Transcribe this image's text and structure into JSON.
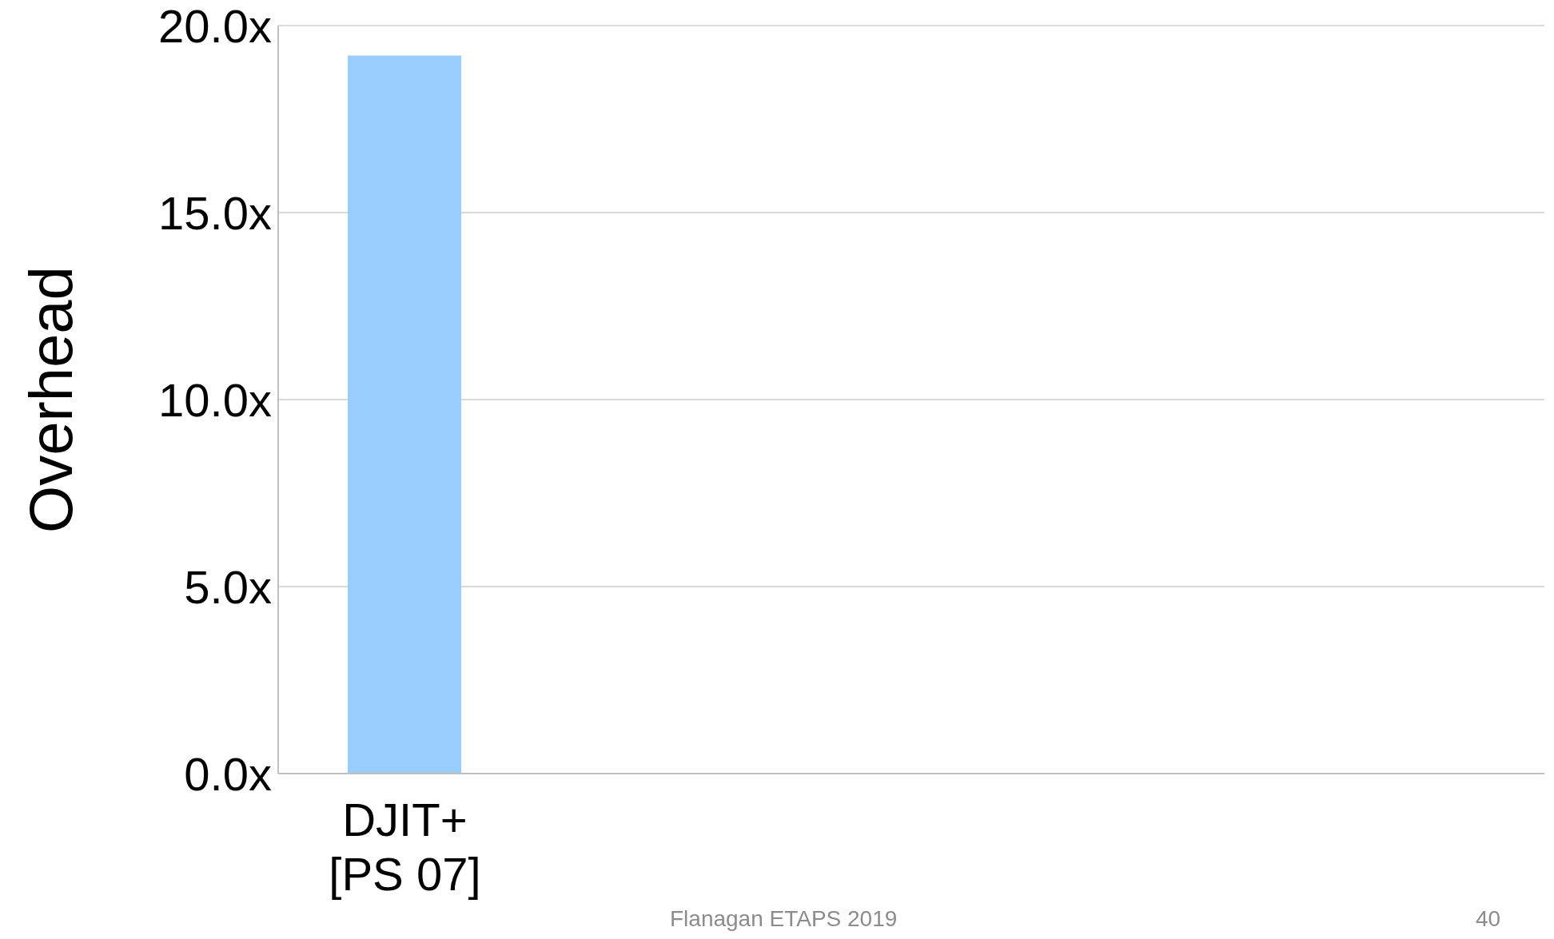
{
  "chart_data": {
    "type": "bar",
    "ylabel": "Overhead",
    "categories": [
      "DJIT+\n[PS 07]",
      null,
      null,
      null,
      null
    ],
    "values": [
      19.2,
      null,
      null,
      null,
      null
    ],
    "color": "#99ccff",
    "ylim": [
      0,
      20
    ],
    "yticks": [
      {
        "value": 0,
        "label": "0.0x"
      },
      {
        "value": 5,
        "label": "5.0x"
      },
      {
        "value": 10,
        "label": "10.0x"
      },
      {
        "value": 15,
        "label": "15.0x"
      },
      {
        "value": 20,
        "label": "20.0x"
      }
    ],
    "grid": "y",
    "annotations": [
      "Flanagan ETAPS 2019",
      "40"
    ]
  }
}
